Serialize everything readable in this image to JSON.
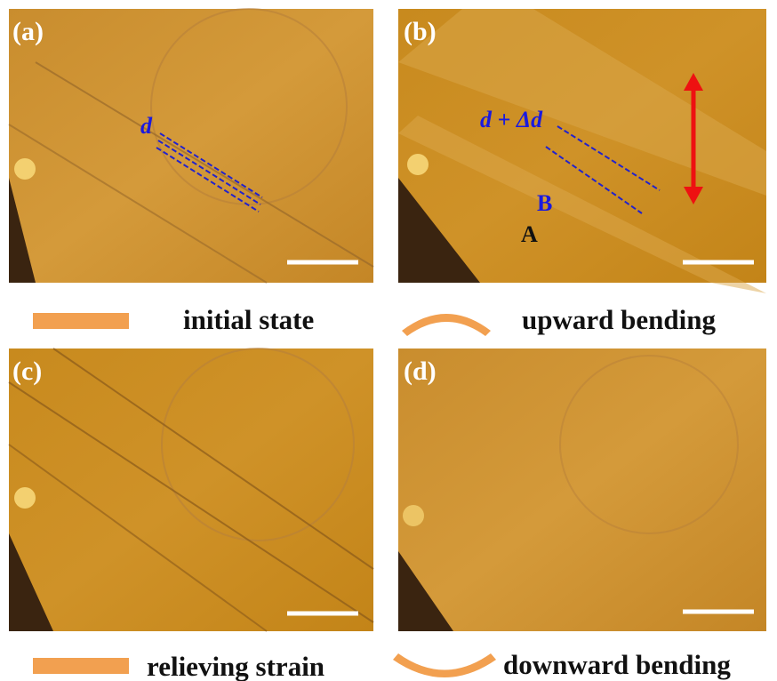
{
  "panels": [
    {
      "label": "(a)",
      "caption": "initial state",
      "annotations": [
        "d"
      ]
    },
    {
      "label": "(b)",
      "caption": "upward bending",
      "annotations": [
        "d + Δd",
        "B",
        "A"
      ]
    },
    {
      "label": "(c)",
      "caption": "relieving strain",
      "annotations": []
    },
    {
      "label": "(d)",
      "caption": "downward bending",
      "annotations": []
    }
  ]
}
